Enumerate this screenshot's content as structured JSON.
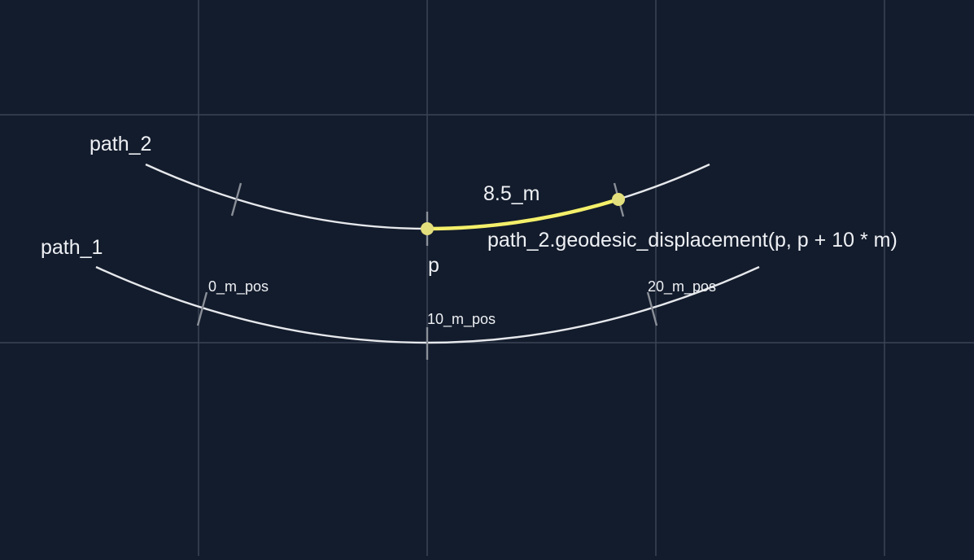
{
  "diagram": {
    "path_1": {
      "label": "path_1"
    },
    "path_2": {
      "label": "path_2"
    },
    "point_p": {
      "label": "p"
    },
    "distance": {
      "label": "8.5_m"
    },
    "expression": {
      "label": "path_2.geodesic_displacement(p, p + 10 * m)"
    },
    "positions": [
      "0_m_pos",
      "10_m_pos",
      "20_m_pos"
    ]
  },
  "colors": {
    "background": "#131c2c",
    "grid": "#3a4455",
    "curve": "#e6e8ec",
    "highlight": "#f4f06a",
    "point": "#e3df7c"
  }
}
